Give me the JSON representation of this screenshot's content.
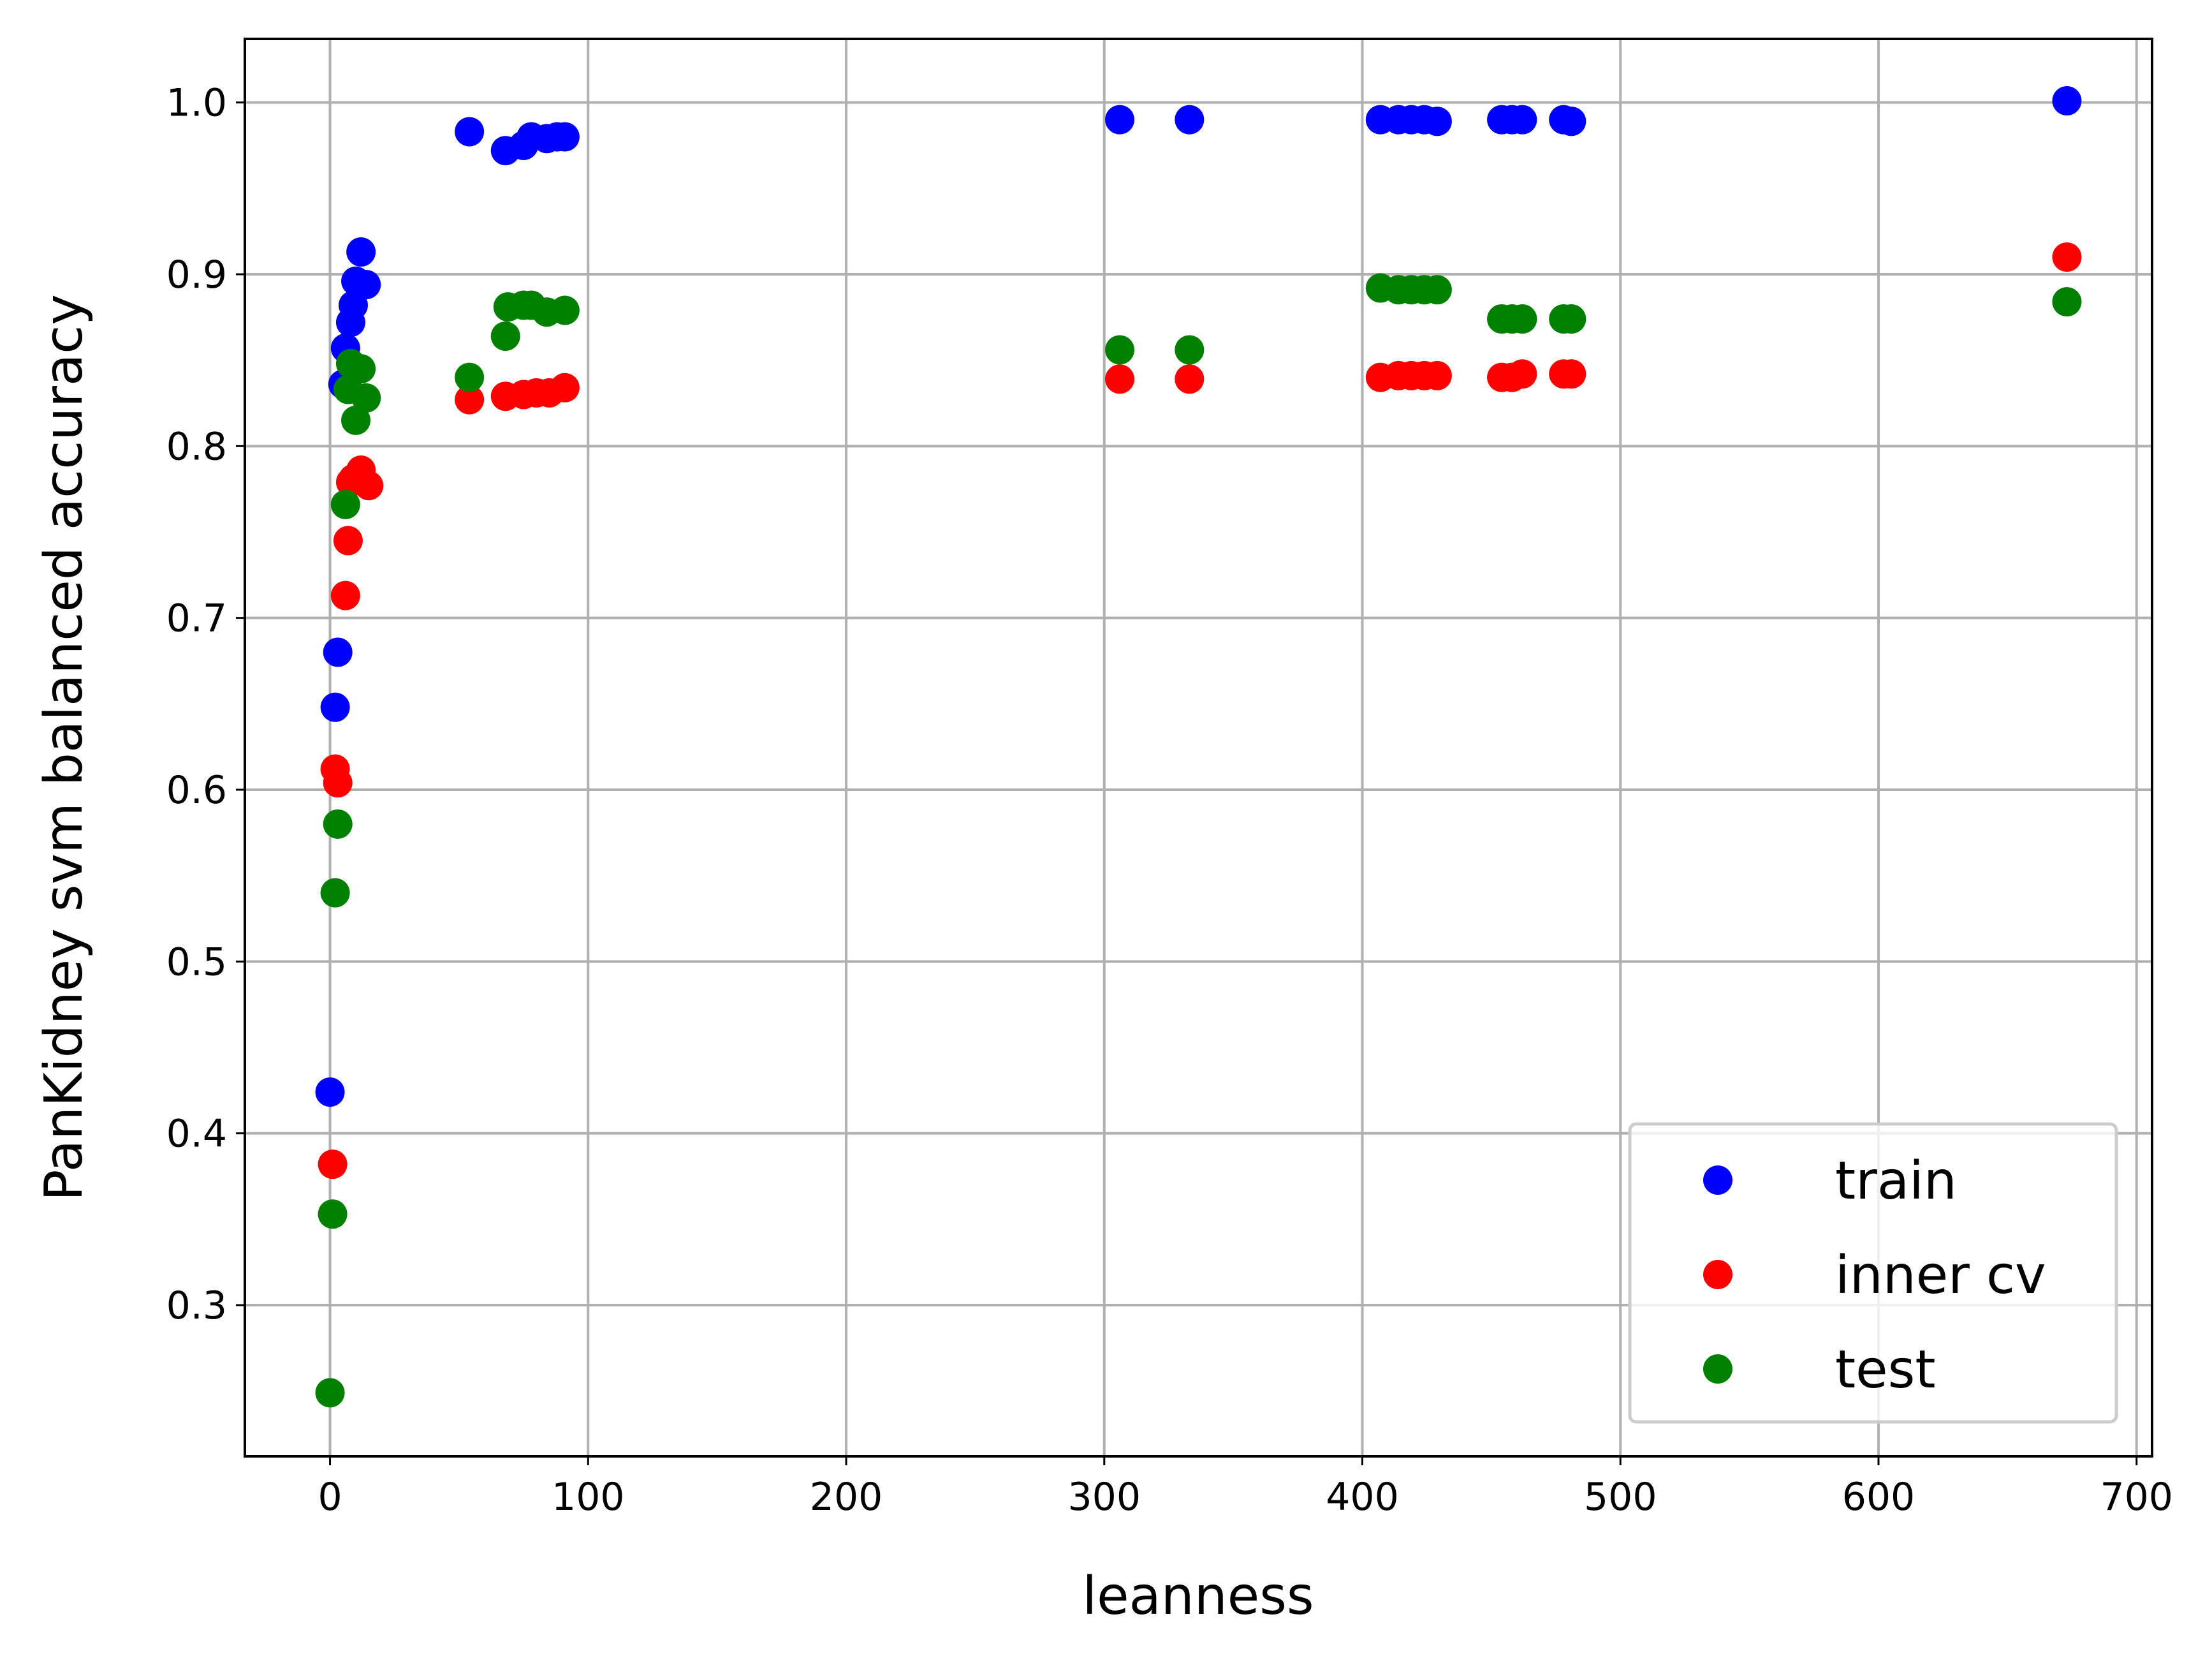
{
  "chart_data": {
    "type": "scatter",
    "title": "",
    "xlabel": "leanness",
    "ylabel": "PanKidney svm balanced accuracy",
    "xlim": [
      -33,
      706
    ],
    "ylim": [
      0.212,
      1.037
    ],
    "xticks": [
      0,
      100,
      200,
      300,
      400,
      500,
      600,
      700
    ],
    "yticks": [
      0.3,
      0.4,
      0.5,
      0.6,
      0.7,
      0.8,
      0.9,
      1.0
    ],
    "xtick_labels": [
      "0",
      "100",
      "200",
      "300",
      "400",
      "500",
      "600",
      "700"
    ],
    "ytick_labels": [
      "0.3",
      "0.4",
      "0.5",
      "0.6",
      "0.7",
      "0.8",
      "0.9",
      "1.0"
    ],
    "grid": true,
    "legend_position": "lower-right",
    "series": [
      {
        "name": "train",
        "color": "#0000ff",
        "points": [
          [
            0,
            0.424
          ],
          [
            2,
            0.648
          ],
          [
            3,
            0.68
          ],
          [
            5,
            0.836
          ],
          [
            6,
            0.857
          ],
          [
            8,
            0.872
          ],
          [
            9,
            0.882
          ],
          [
            10,
            0.896
          ],
          [
            12,
            0.913
          ],
          [
            14,
            0.894
          ],
          [
            54,
            0.983
          ],
          [
            68,
            0.972
          ],
          [
            75,
            0.975
          ],
          [
            78,
            0.98
          ],
          [
            84,
            0.979
          ],
          [
            88,
            0.98
          ],
          [
            91,
            0.98
          ],
          [
            306,
            0.99
          ],
          [
            333,
            0.99
          ],
          [
            407,
            0.99
          ],
          [
            414,
            0.99
          ],
          [
            419,
            0.99
          ],
          [
            424,
            0.99
          ],
          [
            429,
            0.989
          ],
          [
            454,
            0.99
          ],
          [
            458,
            0.99
          ],
          [
            462,
            0.99
          ],
          [
            478,
            0.99
          ],
          [
            481,
            0.989
          ],
          [
            673,
            1.001
          ]
        ]
      },
      {
        "name": "inner cv",
        "color": "#ff0000",
        "points": [
          [
            1,
            0.382
          ],
          [
            2,
            0.612
          ],
          [
            3,
            0.604
          ],
          [
            6,
            0.713
          ],
          [
            7,
            0.745
          ],
          [
            8,
            0.779
          ],
          [
            9,
            0.781
          ],
          [
            12,
            0.786
          ],
          [
            15,
            0.777
          ],
          [
            54,
            0.827
          ],
          [
            68,
            0.829
          ],
          [
            75,
            0.83
          ],
          [
            80,
            0.831
          ],
          [
            85,
            0.831
          ],
          [
            91,
            0.834
          ],
          [
            306,
            0.839
          ],
          [
            333,
            0.839
          ],
          [
            407,
            0.84
          ],
          [
            414,
            0.841
          ],
          [
            419,
            0.841
          ],
          [
            424,
            0.841
          ],
          [
            429,
            0.841
          ],
          [
            454,
            0.84
          ],
          [
            458,
            0.84
          ],
          [
            462,
            0.842
          ],
          [
            478,
            0.842
          ],
          [
            481,
            0.842
          ],
          [
            673,
            0.91
          ]
        ]
      },
      {
        "name": "test",
        "color": "#008000",
        "points": [
          [
            0,
            0.249
          ],
          [
            1,
            0.353
          ],
          [
            2,
            0.54
          ],
          [
            3,
            0.58
          ],
          [
            6,
            0.766
          ],
          [
            7,
            0.833
          ],
          [
            8,
            0.848
          ],
          [
            10,
            0.815
          ],
          [
            12,
            0.845
          ],
          [
            14,
            0.828
          ],
          [
            54,
            0.84
          ],
          [
            68,
            0.864
          ],
          [
            69,
            0.881
          ],
          [
            75,
            0.882
          ],
          [
            78,
            0.882
          ],
          [
            84,
            0.878
          ],
          [
            91,
            0.879
          ],
          [
            306,
            0.856
          ],
          [
            333,
            0.856
          ],
          [
            407,
            0.892
          ],
          [
            414,
            0.891
          ],
          [
            419,
            0.891
          ],
          [
            424,
            0.891
          ],
          [
            429,
            0.891
          ],
          [
            454,
            0.874
          ],
          [
            458,
            0.874
          ],
          [
            462,
            0.874
          ],
          [
            478,
            0.874
          ],
          [
            481,
            0.874
          ],
          [
            673,
            0.884
          ]
        ]
      }
    ]
  }
}
